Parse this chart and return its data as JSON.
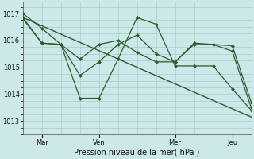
{
  "bg_color": "#cce8e8",
  "grid_color": "#aacccc",
  "line_color": "#2a5e2a",
  "xlabel": "Pression niveau de la mer( hPa )",
  "ylim": [
    1012.6,
    1017.4
  ],
  "yticks": [
    1013,
    1014,
    1015,
    1016,
    1017
  ],
  "xtick_labels": [
    "Mar",
    "Ven",
    "Mer",
    "Jeu"
  ],
  "xtick_positions": [
    8,
    32,
    64,
    88
  ],
  "xlim": [
    0,
    96
  ],
  "series1": {
    "x": [
      0,
      8,
      16,
      24,
      32,
      40,
      48,
      56,
      64,
      72,
      80,
      88,
      96
    ],
    "y": [
      1017.0,
      1016.45,
      1015.85,
      1013.85,
      1013.85,
      1015.3,
      1016.85,
      1016.6,
      1015.05,
      1015.05,
      1015.05,
      1014.2,
      1013.4
    ]
  },
  "series2": {
    "x": [
      0,
      8,
      16,
      24,
      32,
      40,
      48,
      56,
      64,
      72,
      80,
      88,
      96
    ],
    "y": [
      1016.85,
      1015.9,
      1015.85,
      1014.7,
      1015.2,
      1015.85,
      1016.2,
      1015.5,
      1015.2,
      1015.9,
      1015.85,
      1015.8,
      1013.7
    ]
  },
  "series3": {
    "x": [
      0,
      8,
      16,
      24,
      32,
      40,
      48,
      56,
      64,
      72,
      80,
      88,
      96
    ],
    "y": [
      1016.8,
      1015.9,
      1015.85,
      1015.3,
      1015.85,
      1016.0,
      1015.55,
      1015.2,
      1015.2,
      1015.85,
      1015.85,
      1015.6,
      1013.5
    ]
  },
  "trend_line": {
    "x": [
      0,
      96
    ],
    "y": [
      1016.85,
      1013.15
    ]
  }
}
